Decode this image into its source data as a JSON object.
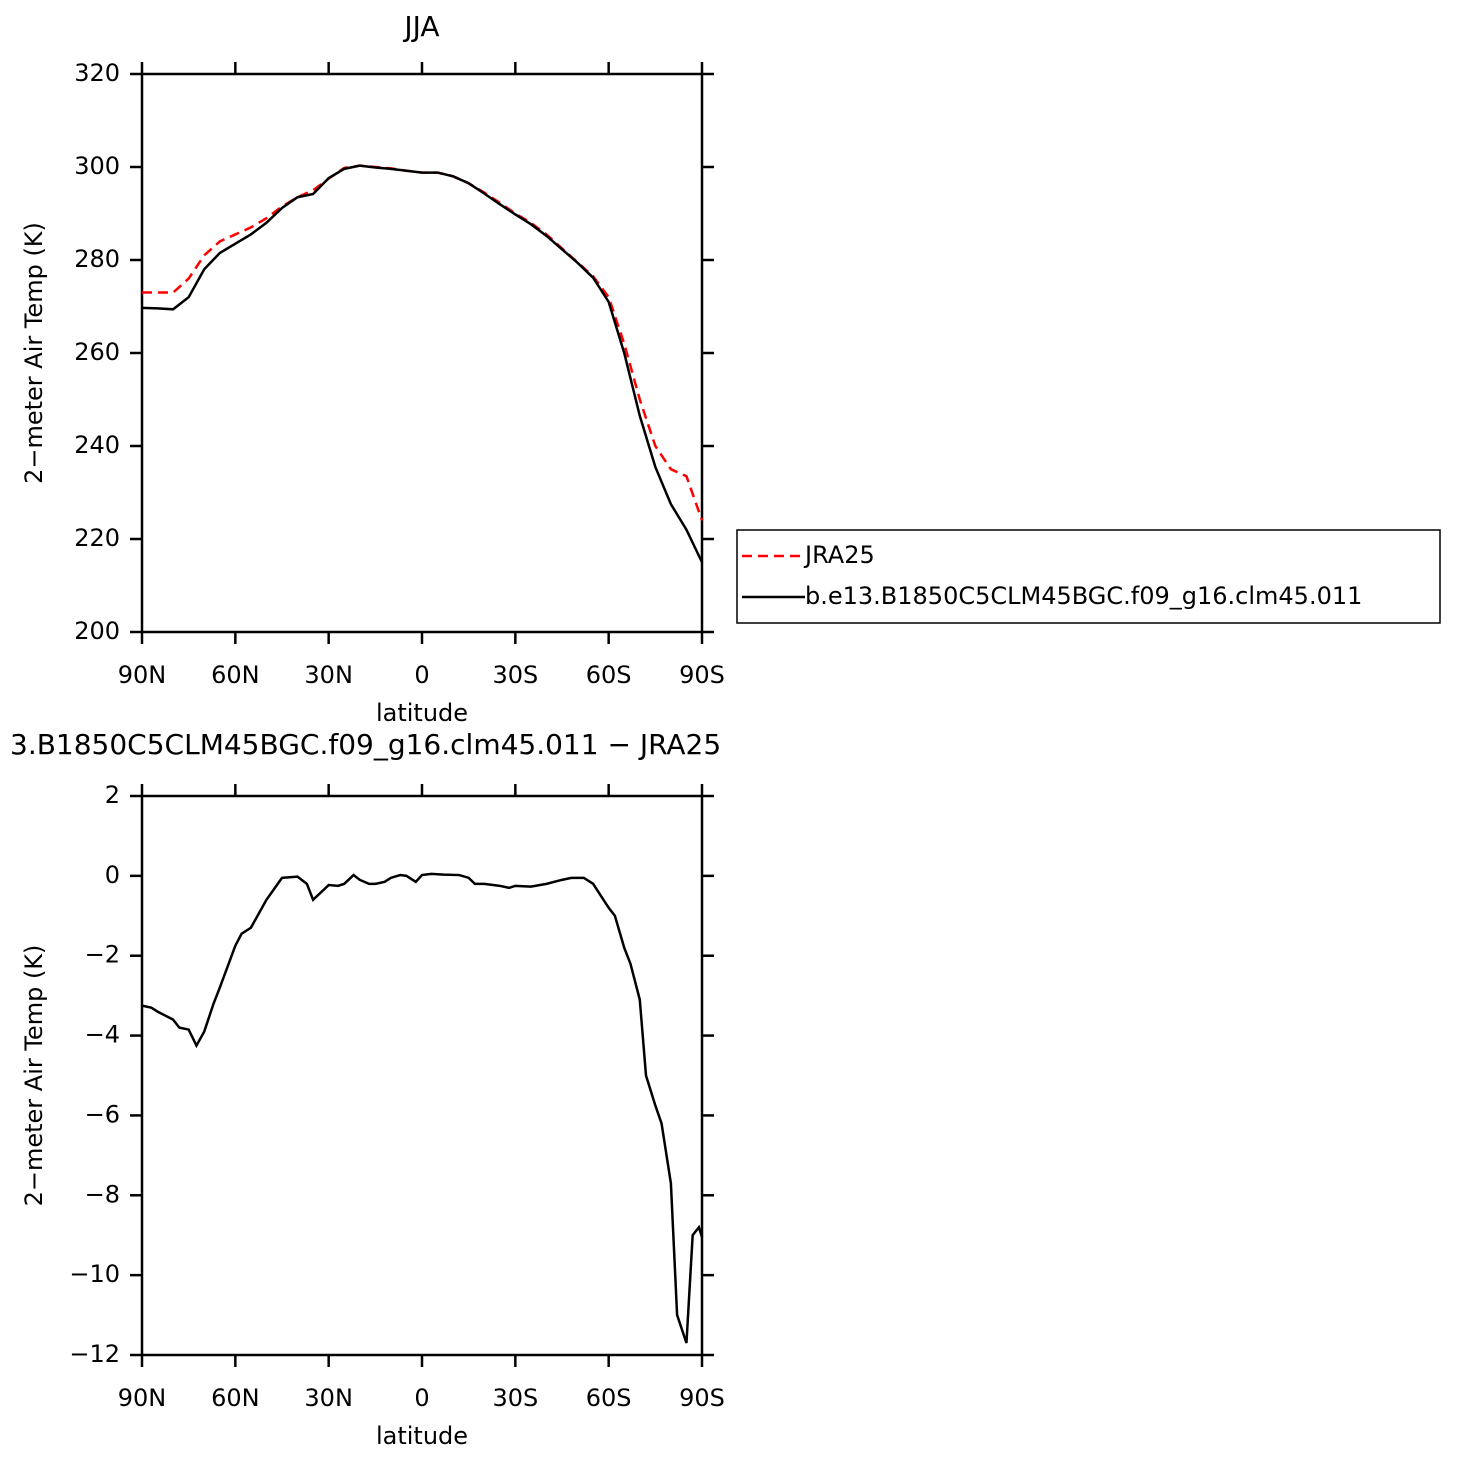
{
  "chart_data": [
    {
      "type": "line",
      "title": "JJA",
      "xlabel": "latitude",
      "ylabel": "2−meter Air Temp (K)",
      "x": [
        90,
        85,
        80,
        75,
        70,
        65,
        60,
        55,
        50,
        45,
        40,
        35,
        30,
        25,
        20,
        15,
        10,
        5,
        0,
        -5,
        -10,
        -15,
        -20,
        -25,
        -30,
        -35,
        -40,
        -45,
        -50,
        -55,
        -60,
        -65,
        -70,
        -75,
        -80,
        -85,
        -90
      ],
      "series": [
        {
          "name": "JRA25",
          "color": "#ff0000",
          "line_style": "dashed",
          "values": [
            273,
            273,
            273,
            276,
            281,
            284,
            285.5,
            287,
            289,
            291.5,
            293.5,
            295,
            297.5,
            299.8,
            300.3,
            300,
            299.7,
            299.2,
            298.8,
            298.8,
            298,
            296.5,
            294.5,
            292.3,
            290,
            288,
            285.5,
            282.5,
            279.5,
            276.5,
            272,
            262,
            250,
            240,
            235,
            233.5,
            224
          ]
        },
        {
          "name": "b.e13.B1850C5CLM45BGC.f09_g16.clm45.011",
          "color": "#000000",
          "line_style": "solid",
          "values": [
            269.7,
            269.6,
            269.4,
            272,
            278,
            281.5,
            283.5,
            285.5,
            288,
            291.2,
            293.5,
            294.2,
            297.6,
            299.6,
            300.3,
            299.9,
            299.6,
            299.2,
            298.8,
            298.8,
            298,
            296.5,
            294.3,
            292,
            289.8,
            287.7,
            285.2,
            282.3,
            279.4,
            276.2,
            271,
            260,
            246.5,
            235.5,
            227.5,
            222,
            215
          ]
        }
      ],
      "xlim": [
        90,
        -90
      ],
      "xticks": [
        {
          "value": 90,
          "label": "90N"
        },
        {
          "value": 60,
          "label": "60N"
        },
        {
          "value": 30,
          "label": "30N"
        },
        0,
        {
          "value": -30,
          "label": "30S"
        },
        {
          "value": -60,
          "label": "60S"
        },
        {
          "value": -90,
          "label": "90S"
        }
      ],
      "ylim": [
        200,
        320
      ],
      "yticks": [
        200,
        220,
        240,
        260,
        280,
        300,
        320
      ],
      "legend": "right"
    },
    {
      "type": "line",
      "title": "3.B1850C5CLM45BGC.f09_g16.clm45.011 − JRA25",
      "xlabel": "latitude",
      "ylabel": "2−meter Air Temp (K)",
      "x": [
        90,
        87,
        85,
        80,
        78,
        75,
        72.5,
        70,
        67,
        65,
        60,
        58,
        55,
        50,
        45,
        40,
        37,
        35,
        30,
        27,
        25,
        22,
        20,
        17,
        15,
        12,
        10,
        7,
        5,
        2,
        0,
        -3,
        -7,
        -12,
        -15,
        -17,
        -20,
        -25,
        -28,
        -30,
        -35,
        -40,
        -45,
        -48,
        -52,
        -55,
        -60,
        -62,
        -65,
        -67,
        -70,
        -72,
        -75,
        -77,
        -80,
        -82,
        -85,
        -87,
        -89,
        -90
      ],
      "values": [
        -3.25,
        -3.3,
        -3.4,
        -3.6,
        -3.8,
        -3.85,
        -4.25,
        -3.9,
        -3.2,
        -2.8,
        -1.75,
        -1.45,
        -1.3,
        -0.6,
        -0.05,
        -0.02,
        -0.2,
        -0.6,
        -0.23,
        -0.25,
        -0.2,
        0.02,
        -0.1,
        -0.2,
        -0.2,
        -0.15,
        -0.05,
        0.02,
        0,
        -0.15,
        0.02,
        0.05,
        0.03,
        0.02,
        -0.05,
        -0.2,
        -0.2,
        -0.25,
        -0.3,
        -0.25,
        -0.27,
        -0.2,
        -0.1,
        -0.05,
        -0.05,
        -0.2,
        -0.8,
        -1,
        -1.8,
        -2.2,
        -3.1,
        -5,
        -5.75,
        -6.2,
        -7.7,
        -11,
        -11.7,
        -9,
        -8.8,
        -9.05
      ],
      "color": "#000000",
      "xlim": [
        90,
        -90
      ],
      "xticks": [
        {
          "value": 90,
          "label": "90N"
        },
        {
          "value": 60,
          "label": "60N"
        },
        {
          "value": 30,
          "label": "30N"
        },
        0,
        {
          "value": -30,
          "label": "30S"
        },
        {
          "value": -60,
          "label": "60S"
        },
        {
          "value": -90,
          "label": "90S"
        }
      ],
      "ylim": [
        -12,
        2
      ],
      "yticks": [
        {
          "value": -12,
          "label": "−12"
        },
        {
          "value": -10,
          "label": "−10"
        },
        {
          "value": -8,
          "label": "−8"
        },
        {
          "value": -6,
          "label": "−6"
        },
        {
          "value": -4,
          "label": "−4"
        },
        {
          "value": -2,
          "label": "−2"
        },
        0,
        2
      ]
    }
  ]
}
